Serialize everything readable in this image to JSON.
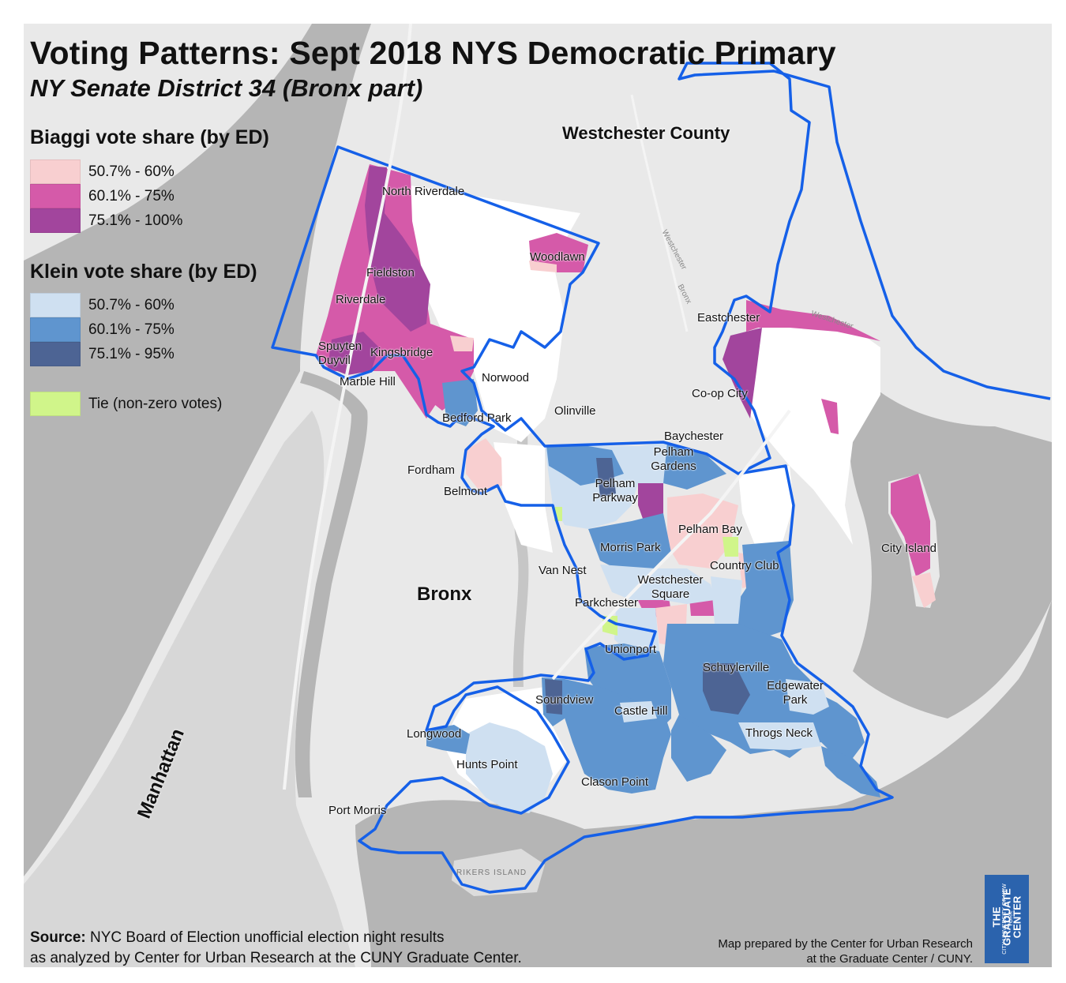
{
  "title": "Voting Patterns: Sept 2018 NYS Democratic Primary",
  "subtitle": "NY Senate District 34 (Bronx part)",
  "legend": {
    "biaggi": {
      "heading": "Biaggi vote share (by ED)",
      "items": [
        {
          "label": "50.7% - 60%",
          "color": "#f8cfd0"
        },
        {
          "label": "60.1% - 75%",
          "color": "#d55aa9"
        },
        {
          "label": "75.1% - 100%",
          "color": "#a2459d"
        }
      ]
    },
    "klein": {
      "heading": "Klein vote share (by ED)",
      "items": [
        {
          "label": "50.7% - 60%",
          "color": "#cfe0f1"
        },
        {
          "label": "60.1% - 75%",
          "color": "#5f95cf"
        },
        {
          "label": "75.1% - 95%",
          "color": "#4d6494"
        }
      ]
    },
    "tie": {
      "label": "Tie (non-zero votes)",
      "color": "#d0f58a"
    }
  },
  "colors": {
    "district_boundary": "#1560e8",
    "land": "#e9e9e9",
    "water": "#b5b5b5",
    "no_data_in_district": "#ffffff"
  },
  "regions": {
    "westchester": "Westchester County",
    "bronx": "Bronx",
    "manhattan": "Manhattan"
  },
  "places": {
    "north_riverdale": "North Riverdale",
    "fieldston": "Fieldston",
    "riverdale": "Riverdale",
    "spuyten_duyvil": "Spuyten Duyvil",
    "kingsbridge": "Kingsbridge",
    "marble_hill": "Marble Hill",
    "woodlawn": "Woodlawn",
    "norwood": "Norwood",
    "bedford_park": "Bedford Park",
    "olinville": "Olinville",
    "eastchester": "Eastchester",
    "co_op_city": "Co-op City",
    "baychester": "Baychester",
    "pelham_gardens": "Pelham Gardens",
    "fordham": "Fordham",
    "belmont": "Belmont",
    "pelham_parkway": "Pelham Parkway",
    "pelham_bay": "Pelham Bay",
    "morris_park": "Morris Park",
    "city_island": "City Island",
    "van_nest": "Van Nest",
    "country_club": "Country Club",
    "westchester_square": "Westchester Square",
    "parkchester": "Parkchester",
    "unionport": "Unionport",
    "schuylerville": "Schuylerville",
    "soundview": "Soundview",
    "edgewater_park": "Edgewater Park",
    "castle_hill": "Castle Hill",
    "longwood": "Longwood",
    "throgs_neck": "Throgs Neck",
    "hunts_point": "Hunts Point",
    "clason_point": "Clason Point",
    "port_morris": "Port Morris",
    "rikers_island": "RIKERS ISLAND",
    "road_westchester_1": "Westchester",
    "road_bronx": "Bronx",
    "road_westchester_2": "Westchester"
  },
  "source": {
    "label": "Source:",
    "line1": "NYC Board of Election unofficial election night results",
    "line2": "as analyzed by Center for Urban Research at the CUNY Graduate Center."
  },
  "credit": {
    "line1": "Map prepared by the Center for Urban Research",
    "line2": "at the Graduate Center / CUNY."
  },
  "logo": {
    "line1": "THE GRADUATE CENTER",
    "line2": "CITY UNIVERSITY OF NEW YORK"
  }
}
